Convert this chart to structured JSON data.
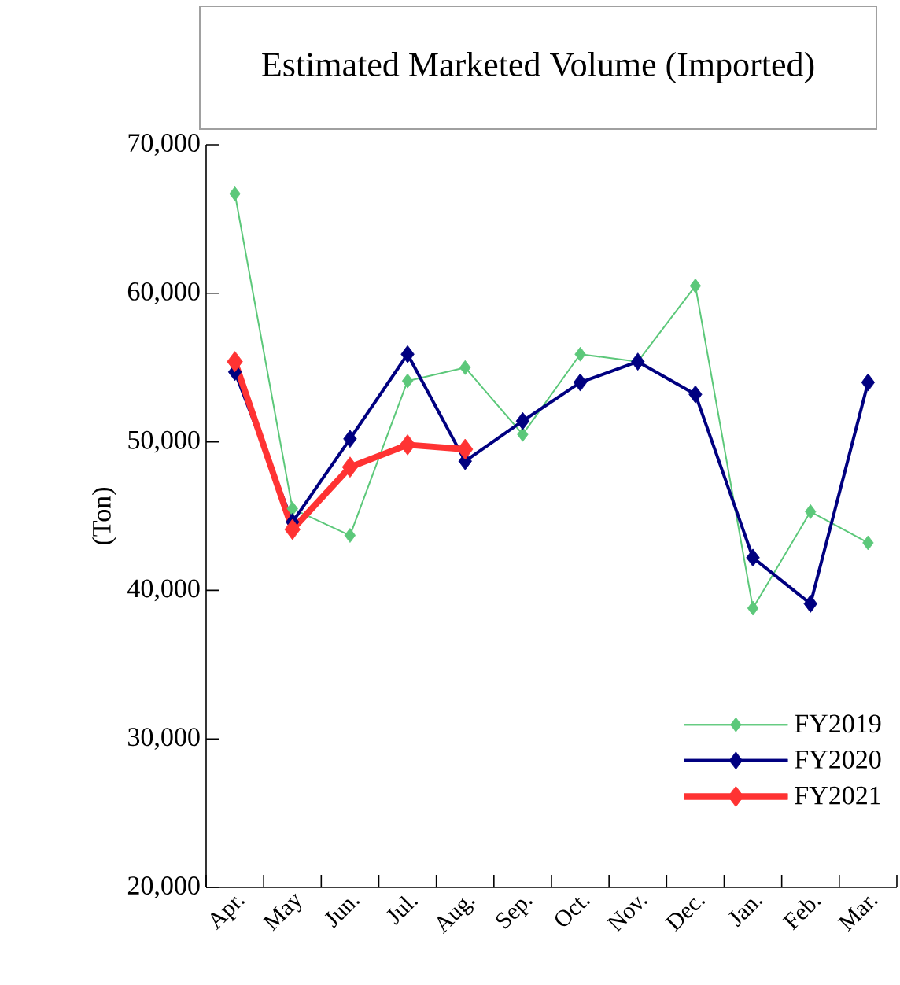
{
  "chart_data": {
    "type": "line",
    "title": "Estimated Marketed Volume (Imported)",
    "ylabel": "(Ton)",
    "categories": [
      "Apr.",
      "May",
      "Jun.",
      "Jul.",
      "Aug.",
      "Sep.",
      "Oct.",
      "Nov.",
      "Dec.",
      "Jan.",
      "Feb.",
      "Mar."
    ],
    "series": [
      {
        "name": "FY2019",
        "color": "#5cc87a",
        "values": [
          66700,
          45500,
          43700,
          54100,
          55000,
          50500,
          55900,
          55400,
          60500,
          38800,
          45300,
          43200
        ]
      },
      {
        "name": "FY2020",
        "color": "#000080",
        "values": [
          54700,
          44600,
          50200,
          55900,
          48700,
          51400,
          54000,
          55400,
          53200,
          42200,
          39100,
          54000
        ]
      },
      {
        "name": "FY2021",
        "color": "#ff3333",
        "values": [
          55400,
          44100,
          48300,
          49800,
          49500,
          null,
          null,
          null,
          null,
          null,
          null,
          null
        ]
      }
    ],
    "ylim": [
      20000,
      70000
    ],
    "yticks": [
      {
        "value": 20000,
        "label": "20,000"
      },
      {
        "value": 30000,
        "label": "30,000"
      },
      {
        "value": 40000,
        "label": "40,000"
      },
      {
        "value": 50000,
        "label": "50,000"
      },
      {
        "value": 60000,
        "label": "60,000"
      },
      {
        "value": 70000,
        "label": "70,000"
      }
    ],
    "grid": false,
    "legend": "bottom right",
    "marker": "diamond",
    "line_style": "solid"
  }
}
